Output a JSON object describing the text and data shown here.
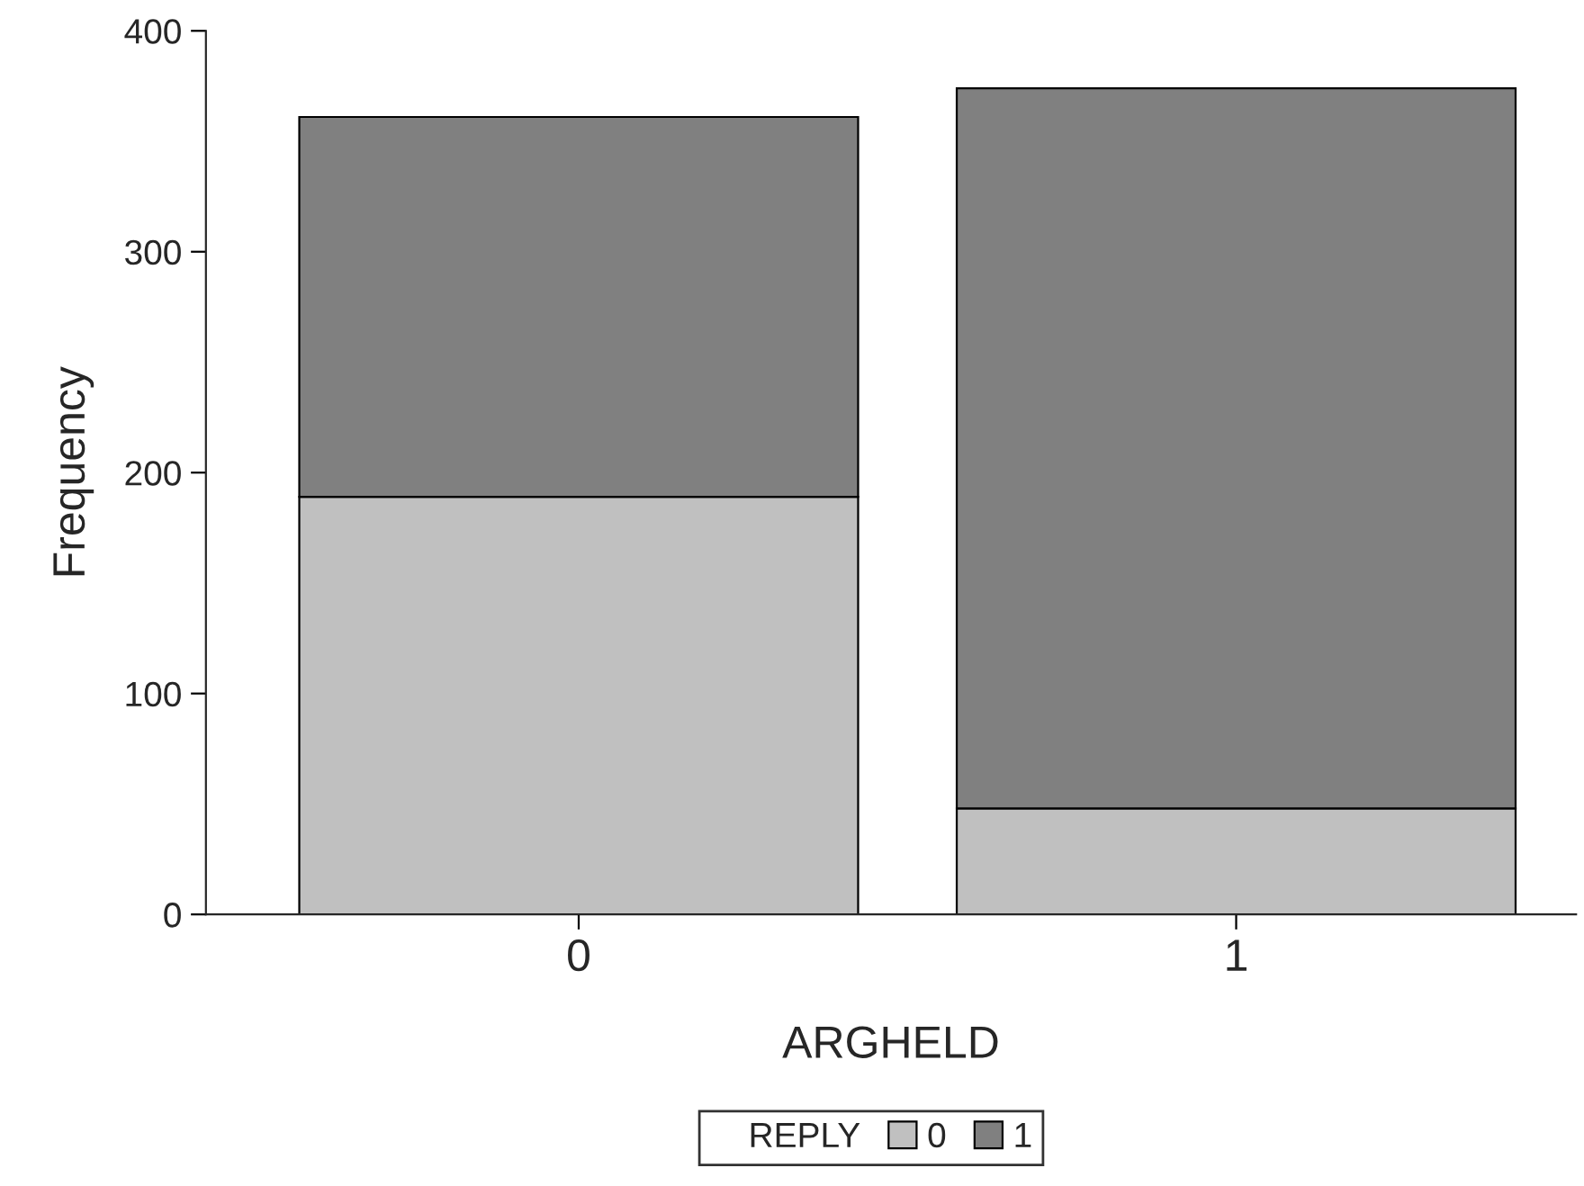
{
  "chart_data": {
    "type": "bar",
    "stacked": true,
    "categories": [
      "0",
      "1"
    ],
    "xlabel": "ARGHELD",
    "ylabel": "Frequency",
    "legend_title": "REPLY",
    "legend": "bottom",
    "ylim": [
      0,
      400
    ],
    "yticks": [
      0,
      100,
      200,
      300,
      400
    ],
    "grid": false,
    "series": [
      {
        "name": "0",
        "color": "#c0c0c0",
        "values": [
          189,
          48
        ]
      },
      {
        "name": "1",
        "color": "#808080",
        "values": [
          172,
          326
        ]
      }
    ]
  }
}
